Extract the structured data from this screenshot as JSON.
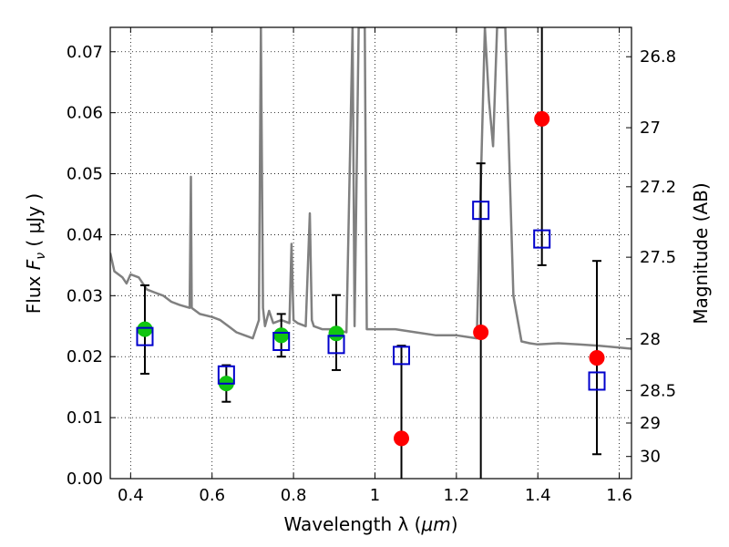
{
  "chart_data": {
    "type": "scatter",
    "x_axis": {
      "label_main": "Wavelength  λ (",
      "label_unit": "μm",
      "label_close": ")",
      "range": [
        0.35,
        1.63
      ],
      "ticks": [
        0.4,
        0.6,
        0.8,
        1.0,
        1.2,
        1.4,
        1.6
      ],
      "tick_labels": [
        "0.4",
        "0.6",
        "0.8",
        "1",
        "1.2",
        "1.4",
        "1.6"
      ]
    },
    "y_axis": {
      "label_main": "Flux  ",
      "label_symbol": "F",
      "label_sub": "ν",
      "label_unit": "  ( μJy )",
      "range": [
        0.0,
        0.074
      ],
      "ticks": [
        0.0,
        0.01,
        0.02,
        0.03,
        0.04,
        0.05,
        0.06,
        0.07
      ],
      "tick_labels": [
        "0.00",
        "0.01",
        "0.02",
        "0.03",
        "0.04",
        "0.05",
        "0.06",
        "0.07"
      ]
    },
    "y2_axis": {
      "label": "Magnitude (AB)",
      "ticks": [
        26.8,
        27,
        27.2,
        27.5,
        28,
        28.5,
        29,
        30
      ],
      "tick_labels": [
        "26.8",
        "27",
        "27.2",
        "27.5",
        "28",
        "28.5",
        "29",
        "30"
      ]
    },
    "grid": true,
    "series": [
      {
        "role": "model spectrum",
        "style": "line",
        "color": "#808080",
        "x": [
          0.35,
          0.36,
          0.37,
          0.38,
          0.39,
          0.4,
          0.42,
          0.44,
          0.46,
          0.48,
          0.5,
          0.52,
          0.545,
          0.548,
          0.55,
          0.57,
          0.6,
          0.62,
          0.64,
          0.66,
          0.68,
          0.7,
          0.715,
          0.72,
          0.725,
          0.73,
          0.74,
          0.75,
          0.77,
          0.79,
          0.795,
          0.8,
          0.81,
          0.83,
          0.84,
          0.845,
          0.85,
          0.87,
          0.9,
          0.93,
          0.945,
          0.95,
          0.96,
          0.965,
          0.97,
          0.975,
          0.98,
          1.0,
          1.05,
          1.1,
          1.15,
          1.2,
          1.25,
          1.27,
          1.28,
          1.29,
          1.3,
          1.32,
          1.34,
          1.36,
          1.38,
          1.4,
          1.45,
          1.5,
          1.55,
          1.6,
          1.63
        ],
        "y": [
          0.037,
          0.034,
          0.0335,
          0.033,
          0.032,
          0.0335,
          0.033,
          0.031,
          0.0305,
          0.03,
          0.029,
          0.0285,
          0.028,
          0.0495,
          0.028,
          0.027,
          0.0265,
          0.026,
          0.025,
          0.024,
          0.0235,
          0.023,
          0.026,
          0.074,
          0.028,
          0.025,
          0.0275,
          0.0255,
          0.026,
          0.0255,
          0.0385,
          0.026,
          0.0255,
          0.025,
          0.0435,
          0.026,
          0.025,
          0.0245,
          0.0245,
          0.024,
          0.074,
          0.025,
          0.074,
          0.074,
          0.074,
          0.074,
          0.0245,
          0.0245,
          0.0245,
          0.024,
          0.0235,
          0.0235,
          0.023,
          0.074,
          0.062,
          0.0545,
          0.074,
          0.074,
          0.03,
          0.0225,
          0.0222,
          0.022,
          0.0222,
          0.022,
          0.0218,
          0.0215,
          0.0213
        ]
      },
      {
        "role": "observed (detections)",
        "style": "point",
        "marker": "circle",
        "color": "#11c511",
        "x": [
          0.435,
          0.635,
          0.77,
          0.905
        ],
        "y": [
          0.0245,
          0.0156,
          0.0235,
          0.0238
        ]
      },
      {
        "role": "observed (upper limits)",
        "style": "point",
        "marker": "circle",
        "color": "#ff0000",
        "x": [
          1.065,
          1.26,
          1.41,
          1.545
        ],
        "y": [
          0.0066,
          0.024,
          0.059,
          0.0198
        ]
      },
      {
        "role": "model photometry",
        "style": "point",
        "marker": "open-square",
        "color": "#0000cc",
        "x": [
          0.435,
          0.635,
          0.77,
          0.905,
          1.065,
          1.26,
          1.41,
          1.545
        ],
        "y": [
          0.0233,
          0.017,
          0.0225,
          0.022,
          0.0202,
          0.044,
          0.0393,
          0.016
        ]
      }
    ],
    "error_bars": [
      {
        "x": 0.435,
        "low": 0.0172,
        "high": 0.0317
      },
      {
        "x": 0.635,
        "low": 0.0126,
        "high": 0.0186
      },
      {
        "x": 0.77,
        "low": 0.02,
        "high": 0.027
      },
      {
        "x": 0.905,
        "low": 0.0178,
        "high": 0.0301
      },
      {
        "x": 1.065,
        "low": 0.0,
        "high": 0.0218
      },
      {
        "x": 1.26,
        "low": 0.0,
        "high": 0.0517
      },
      {
        "x": 1.41,
        "low": 0.035,
        "high": 0.074
      },
      {
        "x": 1.545,
        "low": 0.004,
        "high": 0.0357
      }
    ]
  }
}
